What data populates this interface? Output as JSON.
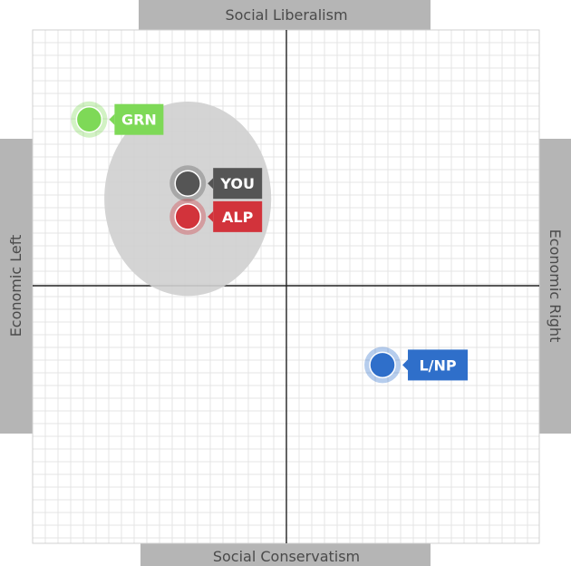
{
  "chart_data": {
    "type": "scatter",
    "axes": {
      "top": "Social Liberalism",
      "bottom": "Social Conservatism",
      "left": "Economic Left",
      "right": "Economic Right"
    },
    "xlim": [
      -10,
      10
    ],
    "ylim": [
      -10,
      10
    ],
    "grid": true,
    "points": [
      {
        "label": "GRN",
        "x": -7.8,
        "y": 6.5,
        "color": "#7ed957"
      },
      {
        "label": "YOU",
        "x": -3.9,
        "y": 4.0,
        "color": "#555555"
      },
      {
        "label": "ALP",
        "x": -3.9,
        "y": 2.7,
        "color": "#d2333b"
      },
      {
        "label": "L/NP",
        "x": 3.8,
        "y": -3.1,
        "color": "#2f6fca"
      }
    ],
    "confidence_region": {
      "center_x": -3.9,
      "center_y": 3.4,
      "radius_x": 3.3,
      "radius_y": 3.8,
      "color": "#cfcfcf"
    }
  }
}
